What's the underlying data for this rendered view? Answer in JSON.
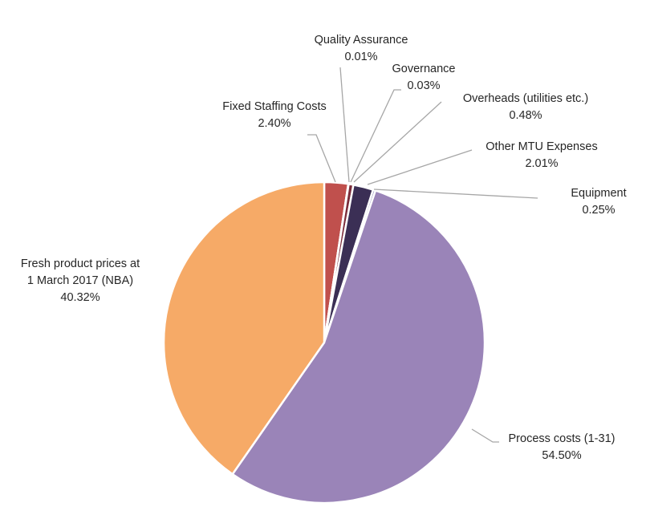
{
  "chart_data": {
    "type": "pie",
    "title": "",
    "start_angle_deg": 0,
    "direction": "clockwise",
    "slices": [
      {
        "name": "Fixed Staffing Costs",
        "label_lines": [
          "Fixed Staffing Costs"
        ],
        "value_label": "2.40%",
        "value": 2.4,
        "color": "#c0504d"
      },
      {
        "name": "Quality Assurance",
        "label_lines": [
          "Quality Assurance"
        ],
        "value_label": "0.01%",
        "value": 0.01,
        "color": "#7f7f7f"
      },
      {
        "name": "Governance",
        "label_lines": [
          "Governance"
        ],
        "value_label": "0.03%",
        "value": 0.03,
        "color": "#595959"
      },
      {
        "name": "Overheads (utilities etc.)",
        "label_lines": [
          "Overheads (utilities  etc.)"
        ],
        "value_label": "0.48%",
        "value": 0.48,
        "color": "#7b2c3a"
      },
      {
        "name": "Other MTU Expenses",
        "label_lines": [
          "Other MTU Expenses"
        ],
        "value_label": "2.01%",
        "value": 2.01,
        "color": "#3b2f55"
      },
      {
        "name": "Equipment",
        "label_lines": [
          "Equipment"
        ],
        "value_label": "0.25%",
        "value": 0.25,
        "color": "#8c88b8"
      },
      {
        "name": "Process costs (1-31)",
        "label_lines": [
          "Process costs (1-31)"
        ],
        "value_label": "54.50%",
        "value": 54.5,
        "color": "#9a84b8"
      },
      {
        "name": "Fresh product prices at 1 March 2017 (NBA)",
        "label_lines": [
          "Fresh product prices at",
          "1 March 2017 (NBA)"
        ],
        "value_label": "40.32%",
        "value": 40.32,
        "color": "#f6aa67"
      }
    ]
  }
}
